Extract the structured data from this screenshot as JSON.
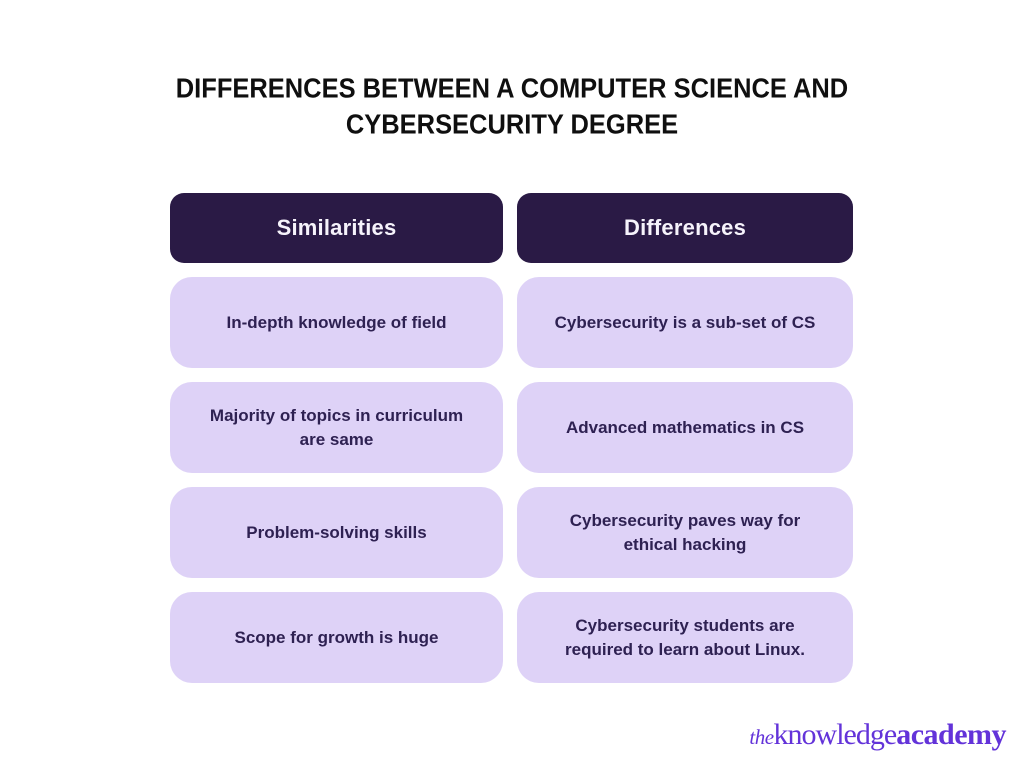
{
  "page": {
    "title_line1": "DIFFERENCES BETWEEN A COMPUTER SCIENCE AND",
    "title_line2": "CYBERSECURITY DEGREE"
  },
  "table": {
    "columns": [
      {
        "header": "Similarities",
        "rows": [
          "In-depth knowledge of field",
          "Majority of topics in curriculum are same",
          "Problem-solving skills",
          "Scope for growth is huge"
        ]
      },
      {
        "header": "Differences",
        "rows": [
          "Cybersecurity is a sub-set of CS",
          "Advanced mathematics in CS",
          "Cybersecurity paves way for ethical hacking",
          "Cybersecurity students are required to learn about Linux."
        ]
      }
    ]
  },
  "logo": {
    "the": "the",
    "knowledge": "knowledge",
    "academy": "academy"
  },
  "colors": {
    "background": "#ffffff",
    "header_bg": "#2a1a45",
    "header_text": "#f6f3fb",
    "cell_bg": "#ded2f7",
    "cell_text": "#2e2152",
    "title_text": "#0f0f0f",
    "logo_purple": "#6333d9"
  }
}
